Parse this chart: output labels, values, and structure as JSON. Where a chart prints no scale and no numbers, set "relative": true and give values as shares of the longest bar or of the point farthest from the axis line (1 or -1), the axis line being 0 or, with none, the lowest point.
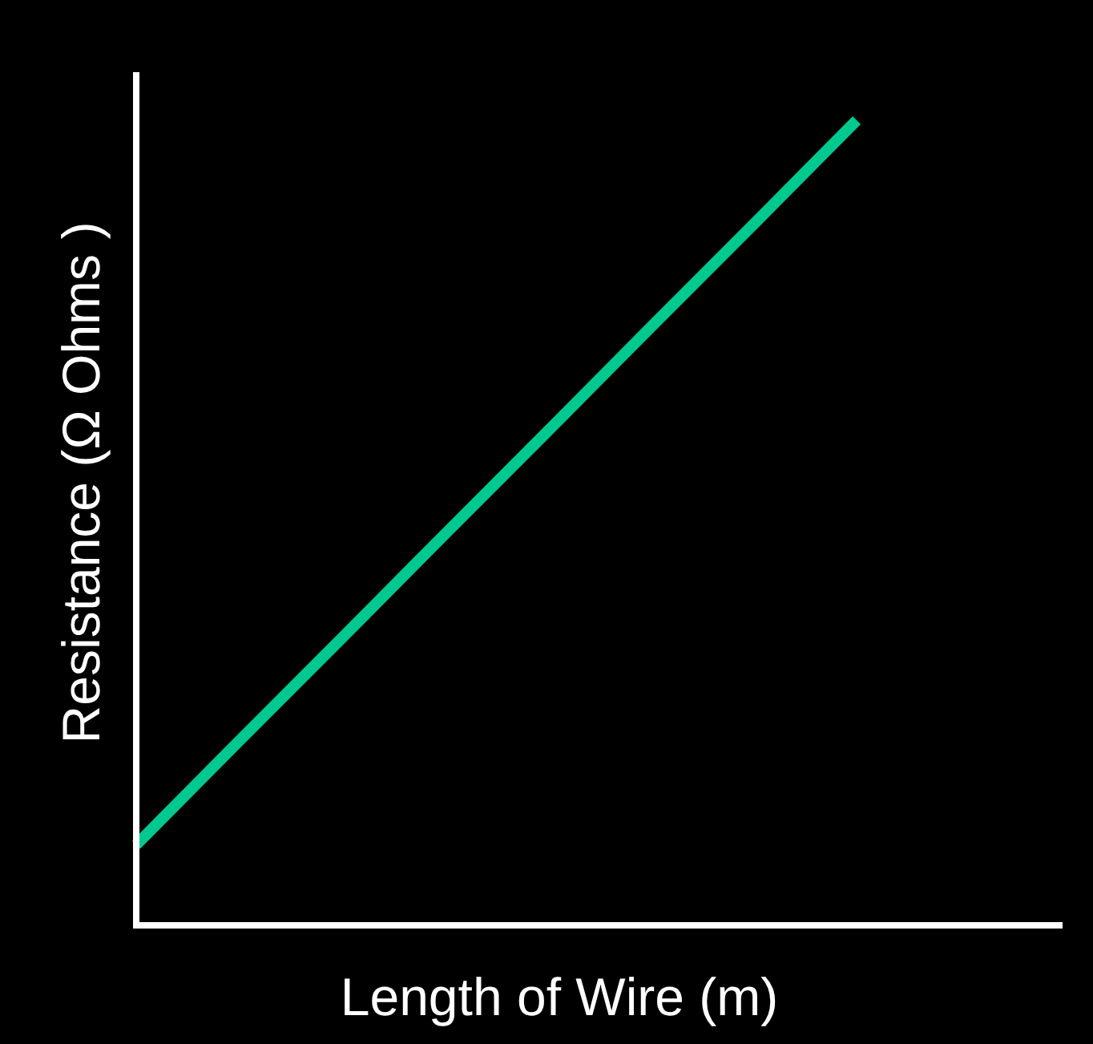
{
  "chart_data": {
    "type": "line",
    "relative": true,
    "xlabel": "Length of Wire (m)",
    "ylabel": "Resistance (Ω Ohms )",
    "categories": [
      null,
      null,
      null,
      null,
      null,
      null,
      null,
      null,
      null,
      null
    ],
    "series": [
      {
        "color": "#00c98f",
        "values": [
          0.1,
          0.229,
          0.357,
          0.486,
          0.614,
          0.743,
          0.871,
          1,
          null,
          null
        ]
      }
    ],
    "grid": false,
    "marker": "none",
    "line_style": "solid"
  }
}
